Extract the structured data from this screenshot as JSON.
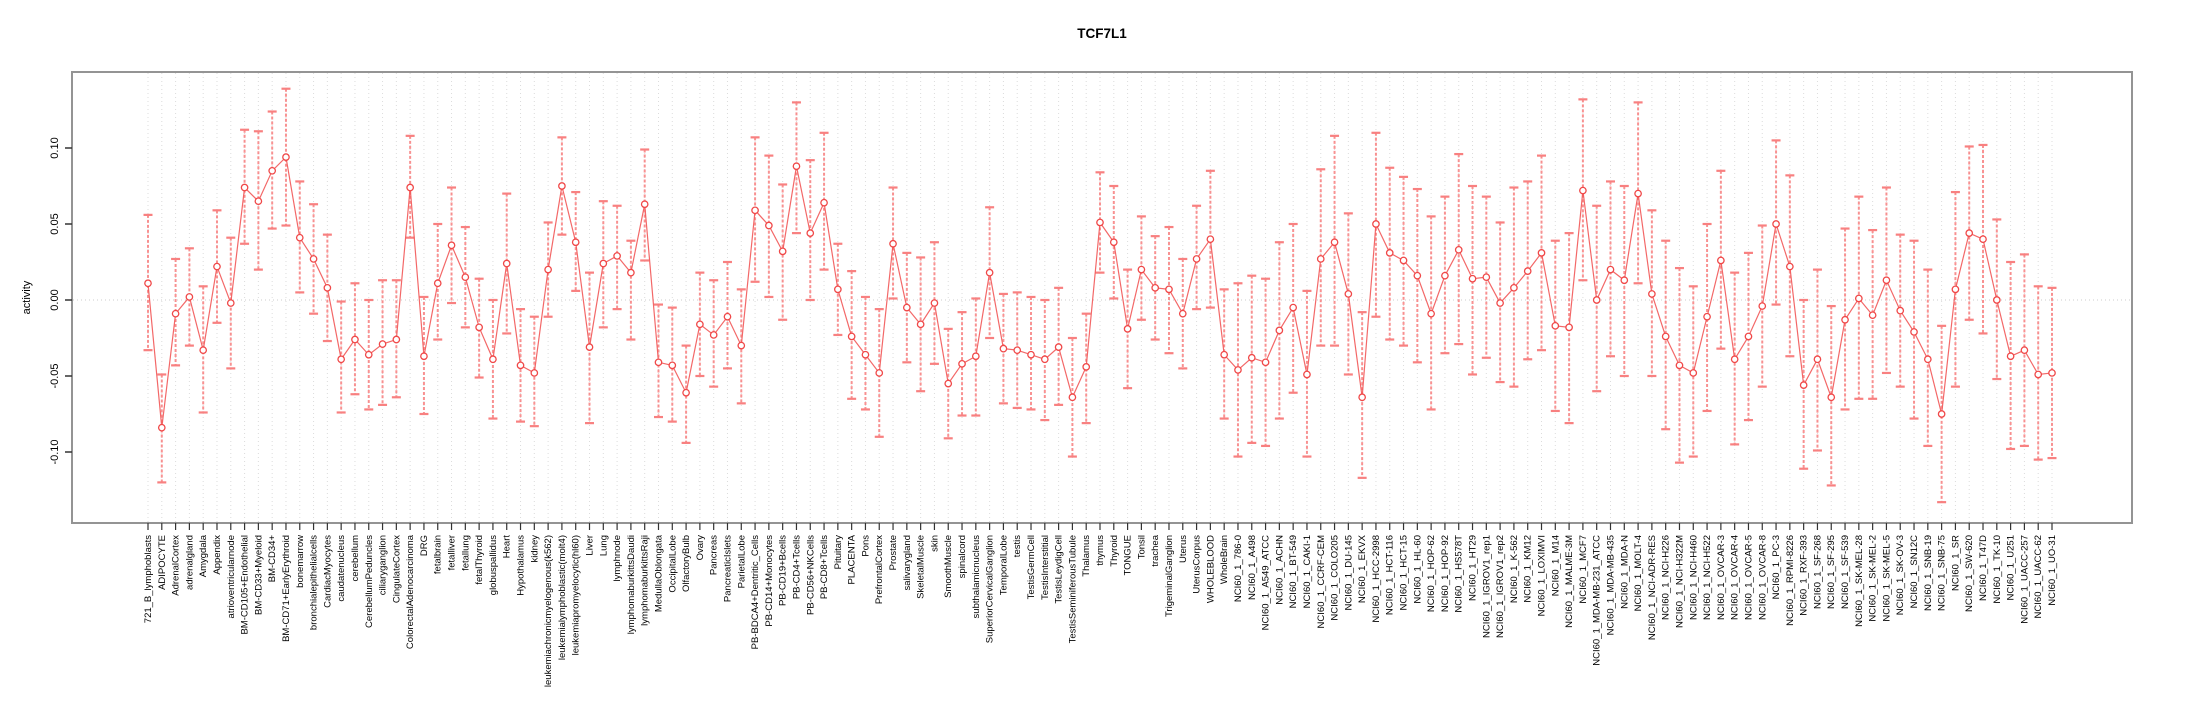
{
  "chart": {
    "title_label": "TCF7L1",
    "y_axis_title": "activity"
  },
  "chart_data": {
    "type": "scatter",
    "subtype": "points-with-error-bars-connected-by-lines",
    "title": "TCF7L1",
    "xlabel": "",
    "ylabel": "activity",
    "ylim": [
      -0.145,
      0.15
    ],
    "y_ticks": [
      0.1,
      0.05,
      0.0,
      -0.05,
      -0.1
    ],
    "y_tick_labels": [
      "0.10",
      "0.05",
      "0.00",
      "-0.05",
      "-0.10"
    ],
    "grid": "vertical dotted gridline per category; dotted horizontal line at 0",
    "legend_position": "none",
    "colors": {
      "point": "#f04848",
      "line": "#f25858",
      "error_bar": "#f88080",
      "grid": "#dcdcdc",
      "zero_line": "#cccccc",
      "box": "#949494",
      "text": "#000000"
    },
    "categories": [
      "721_B_lymphoblasts",
      "ADIPOCYTE",
      "AdrenalCortex",
      "adrenalgland",
      "Amygdala",
      "Appendix",
      "atrioventricularnode",
      "BM-CD105+Endothelial",
      "BM-CD33+Myeloid",
      "BM-CD34+",
      "BM-CD71+EarlyErythroid",
      "bonemarrow",
      "bronchialepithelialcells",
      "CardiacMyocytes",
      "caudatenucleus",
      "cerebellum",
      "CerebellumPeduncles",
      "ciliaryganglion",
      "CingulateCortex",
      "ColorectalAdenocarcinoma",
      "DRG",
      "fetalbrain",
      "fetalliver",
      "fetallung",
      "fetalThyroid",
      "globuspallidus",
      "Heart",
      "Hypothalamus",
      "kidney",
      "leukemiachronicmyelogenous(k562)",
      "leukemialymphoblastic(molt4)",
      "leukemiapromyelocytic(hl60)",
      "Liver",
      "Lung",
      "lymphnode",
      "lymphomaburkittsDaudi",
      "lymphomaburkittsRaji",
      "MedullaOblongata",
      "OccipitalLobe",
      "OlfactoryBulb",
      "Ovary",
      "Pancreas",
      "PancreaticIslets",
      "ParietalLobe",
      "PB-BDCA4+Dentritic_Cells",
      "PB-CD14+Monocytes",
      "PB-CD19+Bcells",
      "PB-CD4+Tcells",
      "PB-CD56+NKCells",
      "PB-CD8+Tcells",
      "Pituitary",
      "PLACENTA",
      "Pons",
      "PrefrontalCortex",
      "Prostate",
      "salivarygland",
      "SkeletalMuscle",
      "skin",
      "SmoothMuscle",
      "spinalcord",
      "subthalamicnucleus",
      "SuperiorCervicalGanglion",
      "TemporalLobe",
      "testis",
      "TestisGermCell",
      "TestisInterstitial",
      "TestisLeydigCell",
      "TestisSeminiferousTubule",
      "Thalamus",
      "thymus",
      "Thyroid",
      "TONGUE",
      "Tonsil",
      "trachea",
      "TrigeminalGanglion",
      "Uterus",
      "UterusCorpus",
      "WHOLEBLOOD",
      "WholeBrain",
      "NCI60_1_786-0",
      "NCI60_1_A498",
      "NCI60_1_A549_ATCC",
      "NCI60_1_ACHN",
      "NCI60_1_BT-549",
      "NCI60_1_CAKI-1",
      "NCI60_1_CCRF-CEM",
      "NCI60_1_COLO205",
      "NCI60_1_DU-145",
      "NCI60_1_EKVX",
      "NCI60_1_HCC-2998",
      "NCI60_1_HCT-116",
      "NCI60_1_HCT-15",
      "NCI60_1_HL-60",
      "NCI60_1_HOP-62",
      "NCI60_1_HOP-92",
      "NCI60_1_HS578T",
      "NCI60_1_HT29",
      "NCI60_1_IGROV1_rep1",
      "NCI60_1_IGROV1_rep2",
      "NCI60_1_K-562",
      "NCI60_1_KM12",
      "NCI60_1_LOXIMVI",
      "NCI60_1_M14",
      "NCI60_1_MALME-3M",
      "NCI60_1_MCF7",
      "NCI60_1_MDA-MB-231_ATCC",
      "NCI60_1_MDA-MB-435",
      "NCI60_1_MDA-N",
      "NCI60_1_MOLT-4",
      "NCI60_1_NCI-ADR-RES",
      "NCI60_1_NCI-H226",
      "NCI60_1_NCI-H322M",
      "NCI60_1_NCI-H460",
      "NCI60_1_NCI-H522",
      "NCI60_1_OVCAR-3",
      "NCI60_1_OVCAR-4",
      "NCI60_1_OVCAR-5",
      "NCI60_1_OVCAR-8",
      "NCI60_1_PC-3",
      "NCI60_1_RPMI-8226",
      "NCI60_1_RXF-393",
      "NCI60_1_SF-268",
      "NCI60_1_SF-295",
      "NCI60_1_SF-539",
      "NCI60_1_SK-MEL-28",
      "NCI60_1_SK-MEL-2",
      "NCI60_1_SK-MEL-5",
      "NCI60_1_SK-OV-3",
      "NCI60_1_SN12C",
      "NCI60_1_SNB-19",
      "NCI60_1_SNB-75",
      "NCI60_1_SR",
      "NCI60_1_SW-620",
      "NCI60_1_T47D",
      "NCI60_1_TK-10",
      "NCI60_1_U251",
      "NCI60_1_UACC-257",
      "NCI60_1_UACC-62",
      "NCI60_1_UO-31"
    ],
    "series": [
      {
        "name": "activity",
        "values": [
          0.011,
          -0.084,
          -0.009,
          0.002,
          -0.033,
          0.022,
          -0.002,
          0.074,
          0.065,
          0.085,
          0.094,
          0.041,
          0.027,
          0.008,
          -0.039,
          -0.026,
          -0.036,
          -0.029,
          -0.026,
          0.074,
          -0.037,
          0.011,
          0.036,
          0.015,
          -0.018,
          -0.039,
          0.024,
          -0.043,
          -0.048,
          0.02,
          0.075,
          0.038,
          -0.031,
          0.024,
          0.029,
          0.018,
          0.063,
          -0.041,
          -0.043,
          -0.061,
          -0.016,
          -0.023,
          -0.011,
          -0.03,
          0.059,
          0.049,
          0.032,
          0.088,
          0.044,
          0.064,
          0.007,
          -0.024,
          -0.036,
          -0.048,
          0.037,
          -0.005,
          -0.016,
          -0.002,
          -0.055,
          -0.042,
          -0.037,
          0.018,
          -0.032,
          -0.033,
          -0.036,
          -0.039,
          -0.031,
          -0.064,
          -0.044,
          0.051,
          0.038,
          -0.019,
          0.02,
          0.008,
          0.007,
          -0.009,
          0.027,
          0.04,
          -0.036,
          -0.046,
          -0.038,
          -0.041,
          -0.02,
          -0.005,
          -0.049,
          0.027,
          0.038,
          0.004,
          -0.064,
          0.05,
          0.031,
          0.026,
          0.016,
          -0.009,
          0.016,
          0.033,
          0.014,
          0.015,
          -0.002,
          0.008,
          0.019,
          0.031,
          -0.017,
          -0.018,
          0.072,
          0.0,
          0.02,
          0.013,
          0.07,
          0.004,
          -0.024,
          -0.043,
          -0.048,
          -0.011,
          0.026,
          -0.039,
          -0.024,
          -0.004,
          0.05,
          0.022,
          -0.056,
          -0.039,
          -0.064,
          -0.013,
          0.001,
          -0.01,
          0.013,
          -0.007,
          -0.021,
          -0.039,
          -0.075,
          0.007,
          0.044,
          0.04,
          0.0,
          -0.037,
          -0.033,
          -0.049,
          -0.048
        ],
        "ci_low": [
          -0.033,
          -0.12,
          -0.043,
          -0.03,
          -0.074,
          -0.015,
          -0.045,
          0.037,
          0.02,
          0.047,
          0.049,
          0.005,
          -0.009,
          -0.027,
          -0.074,
          -0.062,
          -0.072,
          -0.069,
          -0.064,
          0.041,
          -0.075,
          -0.026,
          -0.002,
          -0.018,
          -0.051,
          -0.078,
          -0.022,
          -0.08,
          -0.083,
          -0.011,
          0.043,
          0.006,
          -0.081,
          -0.018,
          -0.006,
          -0.026,
          0.026,
          -0.077,
          -0.08,
          -0.094,
          -0.05,
          -0.057,
          -0.045,
          -0.068,
          0.012,
          0.002,
          -0.013,
          0.044,
          0.0,
          0.02,
          -0.023,
          -0.065,
          -0.072,
          -0.09,
          0.001,
          -0.041,
          -0.06,
          -0.042,
          -0.091,
          -0.076,
          -0.076,
          -0.025,
          -0.068,
          -0.071,
          -0.072,
          -0.079,
          -0.069,
          -0.103,
          -0.081,
          0.018,
          0.001,
          -0.058,
          -0.013,
          -0.026,
          -0.035,
          -0.045,
          -0.006,
          -0.005,
          -0.078,
          -0.103,
          -0.094,
          -0.096,
          -0.078,
          -0.061,
          -0.103,
          -0.03,
          -0.03,
          -0.049,
          -0.117,
          -0.011,
          -0.026,
          -0.03,
          -0.041,
          -0.072,
          -0.035,
          -0.029,
          -0.049,
          -0.038,
          -0.054,
          -0.057,
          -0.039,
          -0.033,
          -0.073,
          -0.081,
          0.013,
          -0.06,
          -0.037,
          -0.05,
          0.011,
          -0.05,
          -0.085,
          -0.107,
          -0.103,
          -0.073,
          -0.032,
          -0.095,
          -0.079,
          -0.057,
          -0.003,
          -0.037,
          -0.111,
          -0.099,
          -0.122,
          -0.072,
          -0.065,
          -0.065,
          -0.048,
          -0.057,
          -0.078,
          -0.096,
          -0.133,
          -0.057,
          -0.013,
          -0.022,
          -0.052,
          -0.098,
          -0.096,
          -0.105,
          -0.104
        ],
        "ci_high": [
          0.056,
          -0.049,
          0.027,
          0.034,
          0.009,
          0.059,
          0.041,
          0.112,
          0.111,
          0.124,
          0.139,
          0.078,
          0.063,
          0.043,
          -0.001,
          0.011,
          0.0,
          0.013,
          0.013,
          0.108,
          0.002,
          0.05,
          0.074,
          0.048,
          0.014,
          0.0,
          0.07,
          -0.006,
          -0.011,
          0.051,
          0.107,
          0.071,
          0.018,
          0.065,
          0.062,
          0.039,
          0.099,
          -0.003,
          -0.005,
          -0.03,
          0.018,
          0.013,
          0.025,
          0.007,
          0.107,
          0.095,
          0.076,
          0.13,
          0.092,
          0.11,
          0.037,
          0.019,
          0.002,
          -0.006,
          0.074,
          0.031,
          0.028,
          0.038,
          -0.019,
          -0.008,
          0.001,
          0.061,
          0.004,
          0.005,
          0.002,
          0.0,
          0.008,
          -0.025,
          -0.009,
          0.084,
          0.075,
          0.02,
          0.055,
          0.042,
          0.048,
          0.027,
          0.062,
          0.085,
          0.007,
          0.011,
          0.016,
          0.014,
          0.038,
          0.05,
          0.006,
          0.086,
          0.108,
          0.057,
          -0.008,
          0.11,
          0.087,
          0.081,
          0.073,
          0.055,
          0.068,
          0.096,
          0.075,
          0.068,
          0.051,
          0.074,
          0.078,
          0.095,
          0.039,
          0.044,
          0.132,
          0.062,
          0.078,
          0.075,
          0.13,
          0.059,
          0.039,
          0.021,
          0.009,
          0.05,
          0.085,
          0.018,
          0.031,
          0.049,
          0.105,
          0.082,
          0.0,
          0.02,
          -0.004,
          0.047,
          0.068,
          0.046,
          0.074,
          0.043,
          0.039,
          0.02,
          -0.017,
          0.071,
          0.101,
          0.102,
          0.053,
          0.025,
          0.03,
          0.009,
          0.008
        ]
      }
    ]
  }
}
